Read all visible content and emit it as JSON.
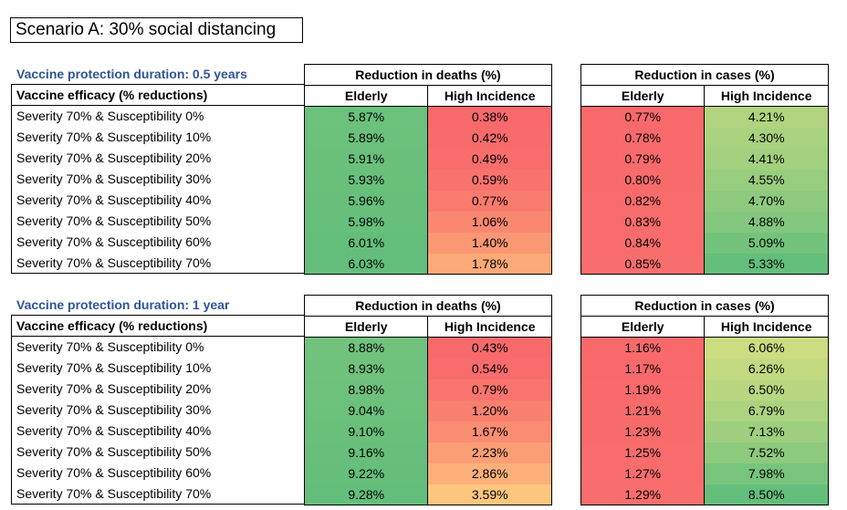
{
  "title": "Scenario A: 30% social distancing",
  "colors": {
    "duration_text": "#2f5597",
    "green_strong": "#63be7b",
    "red_strong": "#f8696b",
    "orange": "#fbaa77",
    "yellow_green": "#c4e17f"
  },
  "row_header": "Vaccine efficacy (% reductions)",
  "deaths_header": "Reduction in deaths (%)",
  "cases_header": "Reduction in cases (%)",
  "col_elderly": "Elderly",
  "col_high": "High Incidence",
  "rows": [
    "Severity 70% & Susceptibility 0%",
    "Severity 70% & Susceptibility 10%",
    "Severity 70% & Susceptibility 20%",
    "Severity 70% & Susceptibility 30%",
    "Severity 70% & Susceptibility 40%",
    "Severity 70% & Susceptibility 50%",
    "Severity 70% & Susceptibility 60%",
    "Severity 70% & Susceptibility 70%"
  ],
  "blocks": [
    {
      "duration": "Vaccine protection duration: 0.5 years",
      "deaths_elderly": [
        "5.87%",
        "5.89%",
        "5.91%",
        "5.93%",
        "5.96%",
        "5.98%",
        "6.01%",
        "6.03%"
      ],
      "deaths_high": [
        "0.38%",
        "0.42%",
        "0.49%",
        "0.59%",
        "0.77%",
        "1.06%",
        "1.40%",
        "1.78%"
      ],
      "cases_elderly": [
        "0.77%",
        "0.78%",
        "0.79%",
        "0.80%",
        "0.82%",
        "0.83%",
        "0.84%",
        "0.85%"
      ],
      "cases_high": [
        "4.21%",
        "4.30%",
        "4.41%",
        "4.55%",
        "4.70%",
        "4.88%",
        "5.09%",
        "5.33%"
      ]
    },
    {
      "duration": "Vaccine protection duration: 1 year",
      "deaths_elderly": [
        "8.88%",
        "8.93%",
        "8.98%",
        "9.04%",
        "9.10%",
        "9.16%",
        "9.22%",
        "9.28%"
      ],
      "deaths_high": [
        "0.43%",
        "0.54%",
        "0.79%",
        "1.20%",
        "1.67%",
        "2.23%",
        "2.86%",
        "3.59%"
      ],
      "cases_elderly": [
        "1.16%",
        "1.17%",
        "1.19%",
        "1.21%",
        "1.23%",
        "1.25%",
        "1.27%",
        "1.29%"
      ],
      "cases_high": [
        "6.06%",
        "6.26%",
        "6.50%",
        "6.79%",
        "7.13%",
        "7.52%",
        "7.98%",
        "8.50%"
      ]
    }
  ]
}
